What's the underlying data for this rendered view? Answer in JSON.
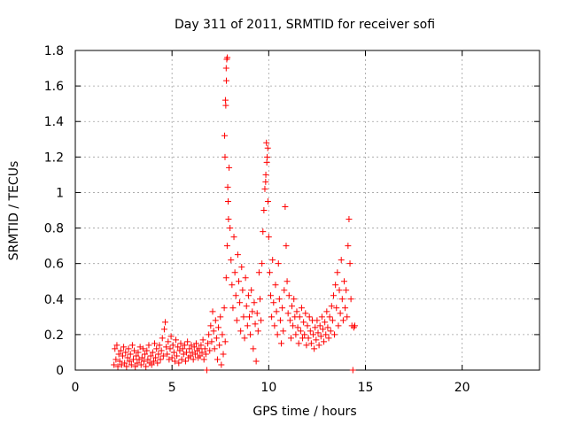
{
  "chart_data": {
    "type": "scatter",
    "title": "Day 311 of 2011, SRMTID for receiver sofi",
    "xlabel": "GPS time / hours",
    "ylabel": "SRMTID / TECUs",
    "xlim": [
      0,
      24
    ],
    "ylim": [
      0,
      1.8
    ],
    "xticks": [
      0,
      5,
      10,
      15,
      20
    ],
    "yticks": [
      0,
      0.2,
      0.4,
      0.6,
      0.8,
      1,
      1.2,
      1.4,
      1.6,
      1.8
    ],
    "ytick_labels": [
      "0",
      "0.2",
      "0.4",
      "0.6",
      "0.8",
      "1",
      "1.2",
      "1.4",
      "1.6",
      "1.8"
    ],
    "grid": true,
    "marker": "+",
    "color": "#ff0000",
    "series": [
      {
        "name": "SRMTID",
        "points": [
          [
            2.0,
            0.03
          ],
          [
            2.05,
            0.12
          ],
          [
            2.1,
            0.06
          ],
          [
            2.15,
            0.14
          ],
          [
            2.2,
            0.02
          ],
          [
            2.25,
            0.09
          ],
          [
            2.3,
            0.05
          ],
          [
            2.35,
            0.11
          ],
          [
            2.4,
            0.03
          ],
          [
            2.45,
            0.08
          ],
          [
            2.5,
            0.13
          ],
          [
            2.55,
            0.04
          ],
          [
            2.6,
            0.1
          ],
          [
            2.65,
            0.02
          ],
          [
            2.7,
            0.07
          ],
          [
            2.75,
            0.12
          ],
          [
            2.8,
            0.05
          ],
          [
            2.85,
            0.09
          ],
          [
            2.9,
            0.03
          ],
          [
            2.95,
            0.14
          ],
          [
            3.0,
            0.06
          ],
          [
            3.05,
            0.11
          ],
          [
            3.1,
            0.02
          ],
          [
            3.15,
            0.08
          ],
          [
            3.2,
            0.04
          ],
          [
            3.25,
            0.1
          ],
          [
            3.3,
            0.06
          ],
          [
            3.35,
            0.13
          ],
          [
            3.4,
            0.03
          ],
          [
            3.45,
            0.07
          ],
          [
            3.5,
            0.12
          ],
          [
            3.55,
            0.05
          ],
          [
            3.6,
            0.09
          ],
          [
            3.65,
            0.02
          ],
          [
            3.7,
            0.11
          ],
          [
            3.75,
            0.06
          ],
          [
            3.8,
            0.14
          ],
          [
            3.85,
            0.04
          ],
          [
            3.9,
            0.08
          ],
          [
            3.95,
            0.03
          ],
          [
            4.0,
            0.1
          ],
          [
            4.05,
            0.05
          ],
          [
            4.1,
            0.15
          ],
          [
            4.15,
            0.07
          ],
          [
            4.2,
            0.12
          ],
          [
            4.25,
            0.04
          ],
          [
            4.3,
            0.09
          ],
          [
            4.35,
            0.14
          ],
          [
            4.4,
            0.06
          ],
          [
            4.45,
            0.11
          ],
          [
            4.5,
            0.18
          ],
          [
            4.55,
            0.08
          ],
          [
            4.6,
            0.23
          ],
          [
            4.65,
            0.27
          ],
          [
            4.7,
            0.13
          ],
          [
            4.75,
            0.09
          ],
          [
            4.8,
            0.16
          ],
          [
            4.85,
            0.06
          ],
          [
            4.9,
            0.12
          ],
          [
            4.95,
            0.19
          ],
          [
            5.0,
            0.07
          ],
          [
            5.05,
            0.14
          ],
          [
            5.1,
            0.1
          ],
          [
            5.15,
            0.05
          ],
          [
            5.2,
            0.17
          ],
          [
            5.25,
            0.08
          ],
          [
            5.3,
            0.13
          ],
          [
            5.35,
            0.04
          ],
          [
            5.4,
            0.11
          ],
          [
            5.45,
            0.15
          ],
          [
            5.5,
            0.06
          ],
          [
            5.55,
            0.12
          ],
          [
            5.6,
            0.09
          ],
          [
            5.65,
            0.14
          ],
          [
            5.7,
            0.05
          ],
          [
            5.75,
            0.1
          ],
          [
            5.8,
            0.16
          ],
          [
            5.85,
            0.07
          ],
          [
            5.9,
            0.12
          ],
          [
            5.95,
            0.08
          ],
          [
            6.0,
            0.14
          ],
          [
            6.05,
            0.1
          ],
          [
            6.1,
            0.06
          ],
          [
            6.15,
            0.13
          ],
          [
            6.2,
            0.09
          ],
          [
            6.25,
            0.15
          ],
          [
            6.3,
            0.11
          ],
          [
            6.35,
            0.07
          ],
          [
            6.4,
            0.12
          ],
          [
            6.45,
            0.08
          ],
          [
            6.5,
            0.14
          ],
          [
            6.55,
            0.1
          ],
          [
            6.6,
            0.17
          ],
          [
            6.65,
            0.06
          ],
          [
            6.7,
            0.12
          ],
          [
            6.75,
            0.09
          ],
          [
            6.8,
            0.0
          ],
          [
            6.85,
            0.15
          ],
          [
            6.9,
            0.2
          ],
          [
            6.95,
            0.11
          ],
          [
            7.0,
            0.25
          ],
          [
            7.05,
            0.16
          ],
          [
            7.1,
            0.33
          ],
          [
            7.15,
            0.22
          ],
          [
            7.2,
            0.12
          ],
          [
            7.25,
            0.28
          ],
          [
            7.3,
            0.18
          ],
          [
            7.35,
            0.06
          ],
          [
            7.4,
            0.24
          ],
          [
            7.45,
            0.14
          ],
          [
            7.5,
            0.3
          ],
          [
            7.55,
            0.03
          ],
          [
            7.6,
            0.2
          ],
          [
            7.65,
            0.09
          ],
          [
            7.7,
            0.35
          ],
          [
            7.75,
            0.16
          ],
          [
            7.8,
            0.52
          ],
          [
            7.85,
            0.7
          ],
          [
            7.9,
            0.95
          ],
          [
            7.95,
            1.14
          ],
          [
            7.72,
            1.32
          ],
          [
            7.76,
            1.52
          ],
          [
            7.8,
            1.7
          ],
          [
            7.83,
            1.75
          ],
          [
            7.86,
            1.76
          ],
          [
            7.78,
            1.49
          ],
          [
            7.74,
            1.2
          ],
          [
            7.81,
            1.63
          ],
          [
            7.88,
            1.03
          ],
          [
            7.92,
            0.85
          ],
          [
            8.0,
            0.8
          ],
          [
            8.05,
            0.62
          ],
          [
            8.1,
            0.48
          ],
          [
            8.15,
            0.35
          ],
          [
            8.2,
            0.75
          ],
          [
            8.25,
            0.55
          ],
          [
            8.3,
            0.42
          ],
          [
            8.35,
            0.28
          ],
          [
            8.4,
            0.65
          ],
          [
            8.45,
            0.5
          ],
          [
            8.5,
            0.38
          ],
          [
            8.55,
            0.22
          ],
          [
            8.6,
            0.58
          ],
          [
            8.65,
            0.45
          ],
          [
            8.7,
            0.3
          ],
          [
            8.75,
            0.18
          ],
          [
            8.8,
            0.52
          ],
          [
            8.85,
            0.36
          ],
          [
            8.9,
            0.25
          ],
          [
            8.95,
            0.42
          ],
          [
            9.0,
            0.3
          ],
          [
            9.05,
            0.2
          ],
          [
            9.1,
            0.45
          ],
          [
            9.15,
            0.33
          ],
          [
            9.2,
            0.12
          ],
          [
            9.25,
            0.38
          ],
          [
            9.3,
            0.26
          ],
          [
            9.35,
            0.05
          ],
          [
            9.4,
            0.32
          ],
          [
            9.45,
            0.22
          ],
          [
            9.5,
            0.55
          ],
          [
            9.55,
            0.4
          ],
          [
            9.6,
            0.28
          ],
          [
            9.65,
            0.6
          ],
          [
            9.7,
            0.78
          ],
          [
            9.75,
            0.9
          ],
          [
            9.8,
            1.02
          ],
          [
            9.85,
            1.1
          ],
          [
            9.9,
            1.17
          ],
          [
            9.95,
            1.25
          ],
          [
            9.88,
            1.28
          ],
          [
            9.92,
            1.2
          ],
          [
            9.84,
            1.06
          ],
          [
            9.96,
            0.95
          ],
          [
            10.0,
            0.75
          ],
          [
            10.05,
            0.55
          ],
          [
            10.1,
            0.42
          ],
          [
            10.15,
            0.3
          ],
          [
            10.2,
            0.62
          ],
          [
            10.25,
            0.38
          ],
          [
            10.3,
            0.25
          ],
          [
            10.35,
            0.48
          ],
          [
            10.4,
            0.33
          ],
          [
            10.45,
            0.2
          ],
          [
            10.5,
            0.6
          ],
          [
            10.55,
            0.4
          ],
          [
            10.6,
            0.28
          ],
          [
            10.65,
            0.15
          ],
          [
            10.7,
            0.35
          ],
          [
            10.75,
            0.22
          ],
          [
            10.8,
            0.45
          ],
          [
            10.85,
            0.92
          ],
          [
            10.9,
            0.7
          ],
          [
            10.95,
            0.5
          ],
          [
            11.0,
            0.32
          ],
          [
            11.05,
            0.42
          ],
          [
            11.1,
            0.28
          ],
          [
            11.15,
            0.18
          ],
          [
            11.2,
            0.36
          ],
          [
            11.25,
            0.25
          ],
          [
            11.3,
            0.4
          ],
          [
            11.35,
            0.3
          ],
          [
            11.4,
            0.2
          ],
          [
            11.45,
            0.33
          ],
          [
            11.5,
            0.24
          ],
          [
            11.55,
            0.15
          ],
          [
            11.6,
            0.3
          ],
          [
            11.65,
            0.22
          ],
          [
            11.7,
            0.35
          ],
          [
            11.75,
            0.18
          ],
          [
            11.8,
            0.27
          ],
          [
            11.85,
            0.2
          ],
          [
            11.9,
            0.32
          ],
          [
            11.95,
            0.14
          ],
          [
            12.0,
            0.25
          ],
          [
            12.05,
            0.18
          ],
          [
            12.1,
            0.3
          ],
          [
            12.15,
            0.22
          ],
          [
            12.2,
            0.15
          ],
          [
            12.25,
            0.28
          ],
          [
            12.3,
            0.2
          ],
          [
            12.35,
            0.12
          ],
          [
            12.4,
            0.24
          ],
          [
            12.45,
            0.17
          ],
          [
            12.5,
            0.28
          ],
          [
            12.55,
            0.21
          ],
          [
            12.6,
            0.14
          ],
          [
            12.65,
            0.25
          ],
          [
            12.7,
            0.19
          ],
          [
            12.75,
            0.3
          ],
          [
            12.8,
            0.23
          ],
          [
            12.85,
            0.16
          ],
          [
            12.9,
            0.27
          ],
          [
            12.95,
            0.2
          ],
          [
            13.0,
            0.33
          ],
          [
            13.05,
            0.24
          ],
          [
            13.1,
            0.18
          ],
          [
            13.15,
            0.3
          ],
          [
            13.2,
            0.22
          ],
          [
            13.25,
            0.36
          ],
          [
            13.3,
            0.28
          ],
          [
            13.35,
            0.42
          ],
          [
            13.4,
            0.2
          ],
          [
            13.45,
            0.48
          ],
          [
            13.5,
            0.35
          ],
          [
            13.55,
            0.55
          ],
          [
            13.6,
            0.25
          ],
          [
            13.65,
            0.45
          ],
          [
            13.7,
            0.32
          ],
          [
            13.75,
            0.62
          ],
          [
            13.8,
            0.4
          ],
          [
            13.85,
            0.28
          ],
          [
            13.9,
            0.5
          ],
          [
            13.95,
            0.35
          ],
          [
            14.0,
            0.45
          ],
          [
            14.05,
            0.3
          ],
          [
            14.1,
            0.7
          ],
          [
            14.15,
            0.85
          ],
          [
            14.2,
            0.6
          ],
          [
            14.25,
            0.4
          ],
          [
            14.3,
            0.25
          ],
          [
            14.35,
            0.0
          ],
          [
            14.4,
            0.24
          ],
          [
            14.45,
            0.25
          ]
        ]
      }
    ]
  }
}
